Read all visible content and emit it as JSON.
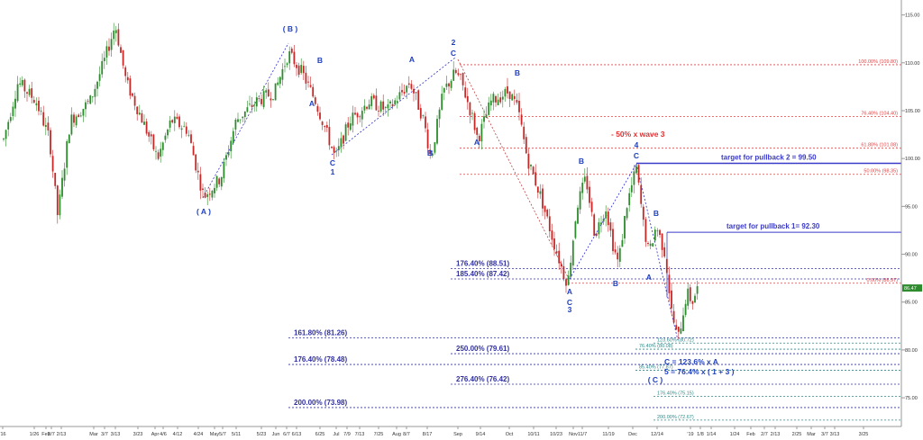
{
  "chart_data": {
    "type": "candlestick",
    "ylim": [
      72,
      116
    ],
    "y_ticks": [
      "115.00",
      "110.00",
      "105.00",
      "100.00",
      "95.00",
      "90.00",
      "85.00",
      "80.00",
      "75.00"
    ],
    "x_labels": [
      "'16",
      "1/26",
      "Feb",
      "2/7",
      "2/13",
      "Mar",
      "3/7",
      "3/13",
      "3/23",
      "Apr",
      "4/6",
      "4/12",
      "4/24",
      "May",
      "5/7",
      "5/11",
      "5/23",
      "Jun",
      "6/7",
      "6/13",
      "6/25",
      "Jul",
      "7/9",
      "7/13",
      "7/25",
      "Aug",
      "8/7",
      "8/17",
      "Sep",
      "9/14",
      "Oct",
      "10/11",
      "10/23",
      "Nov",
      "11/7",
      "11/19",
      "Dec",
      "12/14",
      "'19",
      "1/8",
      "1/14",
      "1/24",
      "Feb",
      "2/7",
      "2/13",
      "2/25",
      "Mar",
      "3/7",
      "3/13",
      "3/25"
    ],
    "last_price": "86.47",
    "fib_lines": [
      {
        "label": "100.00% (109.80)",
        "value": 109.8,
        "color": "#e04040"
      },
      {
        "label": "76.40% (104.40)",
        "value": 104.4,
        "color": "#e04040"
      },
      {
        "label": "61.80% (101.08)",
        "value": 101.08,
        "color": "#e04040"
      },
      {
        "label": "50.00% (98.35)",
        "value": 98.35,
        "color": "#e04040"
      },
      {
        "label": "0.00% (86.97)",
        "value": 86.97,
        "color": "#e04040"
      },
      {
        "label": "176.40% (88.51)",
        "value": 88.51,
        "color": "#3030a0"
      },
      {
        "label": "185.40% (87.42)",
        "value": 87.42,
        "color": "#3030a0"
      },
      {
        "label": "161.80% (81.26)",
        "value": 81.26,
        "color": "#3030a0"
      },
      {
        "label": "250.00% (79.61)",
        "value": 79.61,
        "color": "#3030a0"
      },
      {
        "label": "176.40% (78.48)",
        "value": 78.48,
        "color": "#3030a0"
      },
      {
        "label": "276.40% (76.42)",
        "value": 76.42,
        "color": "#3030a0"
      },
      {
        "label": "200.00% (73.98)",
        "value": 73.98,
        "color": "#3030a0"
      },
      {
        "label": "123.60% (80.72)",
        "value": 80.72,
        "color": "#2a8a8a"
      },
      {
        "label": "76.40% (80.08)",
        "value": 80.08,
        "color": "#2a8a8a"
      },
      {
        "label": "85.40% (77.87)",
        "value": 77.87,
        "color": "#2a8a8a"
      },
      {
        "label": "176.40% (75.15)",
        "value": 75.15,
        "color": "#2a8a8a"
      },
      {
        "label": "200.00% (72.67)",
        "value": 72.67,
        "color": "#2a8a8a"
      }
    ],
    "targets": [
      {
        "label": "target for pullback 2 = 99.50",
        "value": 99.5
      },
      {
        "label": "target for pullback 1= 92.30",
        "value": 92.3
      }
    ],
    "wave_labels": [
      "( B )",
      "( A )",
      "B",
      "A",
      "C",
      "1",
      "A",
      "B",
      "2",
      "C",
      "B",
      "A",
      "B",
      "A",
      "C",
      "3",
      "4",
      "C",
      "A",
      "B",
      "A",
      "B",
      "( C )"
    ],
    "annotations": [
      "- 50% x wave 3",
      "C = 123.6% x A",
      "5 = 76.4% x ( 1 + 3 )"
    ],
    "colors": {
      "up": "#2e8b2e",
      "down": "#c62828",
      "fib_red": "#e04040",
      "fib_blue": "#3030a0",
      "fib_teal": "#2a8a8a",
      "target": "#3a3ac8",
      "wave": "#1f3fbf",
      "annotation_red": "#e03030"
    }
  }
}
